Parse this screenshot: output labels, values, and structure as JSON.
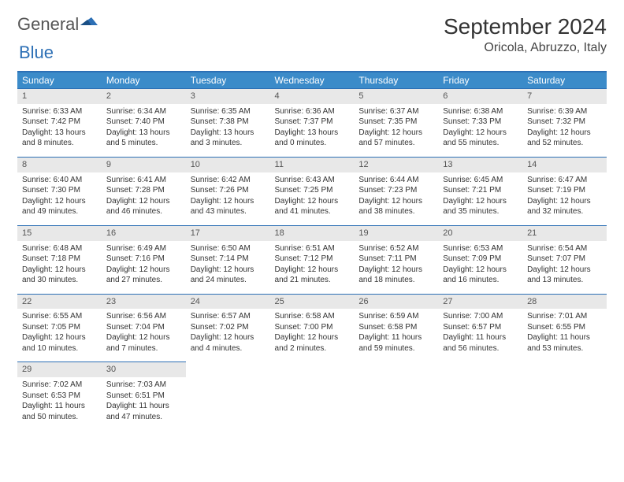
{
  "brand": {
    "word1": "General",
    "word2": "Blue"
  },
  "header": {
    "title": "September 2024",
    "location": "Oricola, Abruzzo, Italy"
  },
  "colors": {
    "header_bg": "#3b8bc9",
    "header_border": "#2c6fb5",
    "daynum_bg": "#e8e8e8",
    "text": "#333333"
  },
  "dayNames": [
    "Sunday",
    "Monday",
    "Tuesday",
    "Wednesday",
    "Thursday",
    "Friday",
    "Saturday"
  ],
  "weeks": [
    [
      {
        "n": "1",
        "sr": "6:33 AM",
        "ss": "7:42 PM",
        "dl": "13 hours and 8 minutes."
      },
      {
        "n": "2",
        "sr": "6:34 AM",
        "ss": "7:40 PM",
        "dl": "13 hours and 5 minutes."
      },
      {
        "n": "3",
        "sr": "6:35 AM",
        "ss": "7:38 PM",
        "dl": "13 hours and 3 minutes."
      },
      {
        "n": "4",
        "sr": "6:36 AM",
        "ss": "7:37 PM",
        "dl": "13 hours and 0 minutes."
      },
      {
        "n": "5",
        "sr": "6:37 AM",
        "ss": "7:35 PM",
        "dl": "12 hours and 57 minutes."
      },
      {
        "n": "6",
        "sr": "6:38 AM",
        "ss": "7:33 PM",
        "dl": "12 hours and 55 minutes."
      },
      {
        "n": "7",
        "sr": "6:39 AM",
        "ss": "7:32 PM",
        "dl": "12 hours and 52 minutes."
      }
    ],
    [
      {
        "n": "8",
        "sr": "6:40 AM",
        "ss": "7:30 PM",
        "dl": "12 hours and 49 minutes."
      },
      {
        "n": "9",
        "sr": "6:41 AM",
        "ss": "7:28 PM",
        "dl": "12 hours and 46 minutes."
      },
      {
        "n": "10",
        "sr": "6:42 AM",
        "ss": "7:26 PM",
        "dl": "12 hours and 43 minutes."
      },
      {
        "n": "11",
        "sr": "6:43 AM",
        "ss": "7:25 PM",
        "dl": "12 hours and 41 minutes."
      },
      {
        "n": "12",
        "sr": "6:44 AM",
        "ss": "7:23 PM",
        "dl": "12 hours and 38 minutes."
      },
      {
        "n": "13",
        "sr": "6:45 AM",
        "ss": "7:21 PM",
        "dl": "12 hours and 35 minutes."
      },
      {
        "n": "14",
        "sr": "6:47 AM",
        "ss": "7:19 PM",
        "dl": "12 hours and 32 minutes."
      }
    ],
    [
      {
        "n": "15",
        "sr": "6:48 AM",
        "ss": "7:18 PM",
        "dl": "12 hours and 30 minutes."
      },
      {
        "n": "16",
        "sr": "6:49 AM",
        "ss": "7:16 PM",
        "dl": "12 hours and 27 minutes."
      },
      {
        "n": "17",
        "sr": "6:50 AM",
        "ss": "7:14 PM",
        "dl": "12 hours and 24 minutes."
      },
      {
        "n": "18",
        "sr": "6:51 AM",
        "ss": "7:12 PM",
        "dl": "12 hours and 21 minutes."
      },
      {
        "n": "19",
        "sr": "6:52 AM",
        "ss": "7:11 PM",
        "dl": "12 hours and 18 minutes."
      },
      {
        "n": "20",
        "sr": "6:53 AM",
        "ss": "7:09 PM",
        "dl": "12 hours and 16 minutes."
      },
      {
        "n": "21",
        "sr": "6:54 AM",
        "ss": "7:07 PM",
        "dl": "12 hours and 13 minutes."
      }
    ],
    [
      {
        "n": "22",
        "sr": "6:55 AM",
        "ss": "7:05 PM",
        "dl": "12 hours and 10 minutes."
      },
      {
        "n": "23",
        "sr": "6:56 AM",
        "ss": "7:04 PM",
        "dl": "12 hours and 7 minutes."
      },
      {
        "n": "24",
        "sr": "6:57 AM",
        "ss": "7:02 PM",
        "dl": "12 hours and 4 minutes."
      },
      {
        "n": "25",
        "sr": "6:58 AM",
        "ss": "7:00 PM",
        "dl": "12 hours and 2 minutes."
      },
      {
        "n": "26",
        "sr": "6:59 AM",
        "ss": "6:58 PM",
        "dl": "11 hours and 59 minutes."
      },
      {
        "n": "27",
        "sr": "7:00 AM",
        "ss": "6:57 PM",
        "dl": "11 hours and 56 minutes."
      },
      {
        "n": "28",
        "sr": "7:01 AM",
        "ss": "6:55 PM",
        "dl": "11 hours and 53 minutes."
      }
    ],
    [
      {
        "n": "29",
        "sr": "7:02 AM",
        "ss": "6:53 PM",
        "dl": "11 hours and 50 minutes."
      },
      {
        "n": "30",
        "sr": "7:03 AM",
        "ss": "6:51 PM",
        "dl": "11 hours and 47 minutes."
      },
      null,
      null,
      null,
      null,
      null
    ]
  ],
  "labels": {
    "sunrise": "Sunrise: ",
    "sunset": "Sunset: ",
    "daylight": "Daylight: "
  }
}
